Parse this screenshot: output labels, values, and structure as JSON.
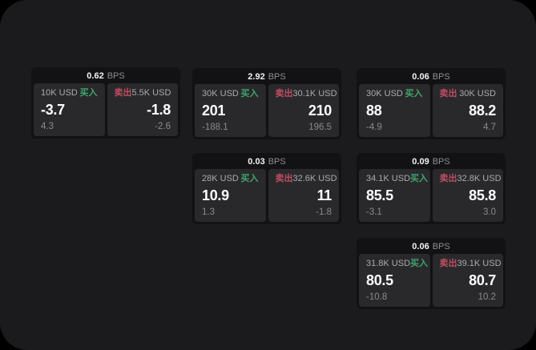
{
  "labels": {
    "buy": "买入",
    "sell": "卖出",
    "bps_unit": "BPS"
  },
  "colors": {
    "buy": "#3fa56b",
    "sell": "#bf4d61",
    "surface": "#1b1b1d",
    "card": "#121214",
    "panel": "#29292c"
  },
  "cards": [
    {
      "bps": "0.62",
      "buy": {
        "amount": "10K USD",
        "value": "-3.7",
        "delta": "4.3"
      },
      "sell": {
        "amount": "5.5K USD",
        "value": "-1.8",
        "delta": "-2.6"
      }
    },
    {
      "bps": "2.92",
      "buy": {
        "amount": "30K USD",
        "value": "201",
        "delta": "-188.1"
      },
      "sell": {
        "amount": "30.1K USD",
        "value": "210",
        "delta": "196.5"
      }
    },
    {
      "bps": "0.06",
      "buy": {
        "amount": "30K USD",
        "value": "88",
        "delta": "-4.9"
      },
      "sell": {
        "amount": "30K USD",
        "value": "88.2",
        "delta": "4.7"
      }
    },
    {
      "bps": "0.03",
      "buy": {
        "amount": "28K USD",
        "value": "10.9",
        "delta": "1.3"
      },
      "sell": {
        "amount": "32.6K USD",
        "value": "11",
        "delta": "-1.8"
      }
    },
    {
      "bps": "0.09",
      "buy": {
        "amount": "34.1K USD",
        "value": "85.5",
        "delta": "-3.1"
      },
      "sell": {
        "amount": "32.8K USD",
        "value": "85.8",
        "delta": "3.0"
      }
    },
    {
      "bps": "0.06",
      "buy": {
        "amount": "31.8K USD",
        "value": "80.5",
        "delta": "-10.8"
      },
      "sell": {
        "amount": "39.1K USD",
        "value": "80.7",
        "delta": "10.2"
      }
    }
  ]
}
